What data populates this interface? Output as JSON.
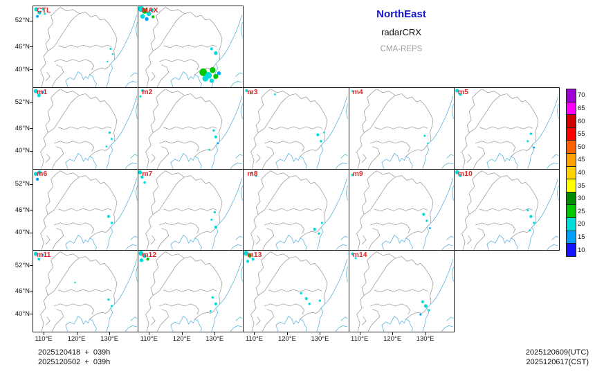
{
  "titles": {
    "region": "NorthEast",
    "product": "radarCRX",
    "model": "CMA-REPS"
  },
  "axes": {
    "y_ticks": [
      "52°N",
      "46°N",
      "40°N"
    ],
    "x_ticks": [
      "110°E",
      "120°E",
      "130°E"
    ]
  },
  "colorbar": {
    "values": [
      70,
      65,
      60,
      55,
      50,
      45,
      40,
      35,
      30,
      25,
      20,
      15,
      10
    ],
    "colors": [
      "#A000D2",
      "#FF00FF",
      "#D00000",
      "#FF0000",
      "#FF6400",
      "#FFA000",
      "#FFD200",
      "#FFFF00",
      "#008C00",
      "#00C800",
      "#00DCDC",
      "#00A0FF",
      "#1414FF"
    ]
  },
  "echo_colors": {
    "c": "#00DCDC",
    "g": "#00C800",
    "b": "#00A0FF",
    "d": "#008C00"
  },
  "panels": [
    {
      "label": "CTL",
      "row": 0,
      "col": 0,
      "echoes": [
        [
          3,
          3,
          2,
          "c"
        ],
        [
          6,
          6,
          1.8,
          "c"
        ],
        [
          9.5,
          2.5,
          1.4,
          "c"
        ],
        [
          4,
          9.5,
          1.3,
          "b"
        ],
        [
          11,
          7,
          1,
          "c"
        ],
        [
          74,
          40,
          1,
          "c"
        ],
        [
          76,
          45,
          0.9,
          "c"
        ],
        [
          71,
          52,
          0.8,
          "c"
        ]
      ]
    },
    {
      "label": "MAX",
      "row": 0,
      "col": 1,
      "echoes": [
        [
          2.5,
          2.5,
          2.8,
          "c"
        ],
        [
          6,
          4.5,
          2.6,
          "g"
        ],
        [
          10,
          7,
          2.2,
          "c"
        ],
        [
          4,
          9.5,
          2.2,
          "c"
        ],
        [
          13,
          3.5,
          1.8,
          "c"
        ],
        [
          8,
          12,
          1.8,
          "b"
        ],
        [
          14,
          10,
          1.4,
          "g"
        ],
        [
          70,
          40,
          1.4,
          "c"
        ],
        [
          74,
          44,
          1.8,
          "c"
        ],
        [
          62,
          62,
          3.6,
          "g"
        ],
        [
          67,
          65,
          3.2,
          "c"
        ],
        [
          71,
          60,
          2.8,
          "g"
        ],
        [
          64,
          68,
          2.8,
          "c"
        ],
        [
          74,
          66,
          2.4,
          "g"
        ],
        [
          70,
          70,
          2,
          "c"
        ],
        [
          77,
          63,
          1.8,
          "b"
        ]
      ]
    },
    {
      "label": "m1",
      "row": 1,
      "col": 0,
      "echoes": [
        [
          2.5,
          3,
          2,
          "c"
        ],
        [
          5.5,
          7,
          1.7,
          "c"
        ],
        [
          9,
          4,
          1.3,
          "b"
        ],
        [
          73,
          42,
          1.1,
          "c"
        ],
        [
          75,
          48,
          1,
          "c"
        ],
        [
          70,
          55,
          0.9,
          "c"
        ]
      ]
    },
    {
      "label": "m2",
      "row": 1,
      "col": 1,
      "echoes": [
        [
          4,
          2.5,
          1.4,
          "c"
        ],
        [
          2,
          8,
          1,
          "c"
        ],
        [
          72,
          40,
          1.1,
          "c"
        ],
        [
          74,
          46,
          1.4,
          "c"
        ],
        [
          76,
          52,
          1,
          "b"
        ],
        [
          68,
          58,
          0.9,
          "c"
        ]
      ]
    },
    {
      "label": "m3",
      "row": 1,
      "col": 2,
      "echoes": [
        [
          3,
          2.5,
          1.4,
          "c"
        ],
        [
          7,
          5,
          1.1,
          "c"
        ],
        [
          30,
          6,
          0.9,
          "c"
        ],
        [
          71,
          44,
          1.4,
          "c"
        ],
        [
          74,
          50,
          1.1,
          "c"
        ],
        [
          77,
          42,
          0.9,
          "c"
        ]
      ]
    },
    {
      "label": "m4",
      "row": 1,
      "col": 3,
      "echoes": [
        [
          3,
          3,
          1,
          "c"
        ],
        [
          72,
          45,
          1,
          "c"
        ],
        [
          75,
          52,
          0.8,
          "c"
        ]
      ]
    },
    {
      "label": "m5",
      "row": 1,
      "col": 4,
      "echoes": [
        [
          2.5,
          2.5,
          1.8,
          "c"
        ],
        [
          5.5,
          6,
          1.4,
          "c"
        ],
        [
          73,
          43,
          1.1,
          "c"
        ],
        [
          70,
          50,
          1,
          "c"
        ],
        [
          76,
          56,
          0.9,
          "b"
        ]
      ]
    },
    {
      "label": "m6",
      "row": 2,
      "col": 0,
      "echoes": [
        [
          2.5,
          4,
          1.9,
          "c"
        ],
        [
          6,
          2.5,
          1.8,
          "c"
        ],
        [
          4,
          9,
          1.4,
          "b"
        ],
        [
          72,
          44,
          1.4,
          "c"
        ],
        [
          75,
          50,
          1.1,
          "c"
        ]
      ]
    },
    {
      "label": "m7",
      "row": 2,
      "col": 1,
      "echoes": [
        [
          1.5,
          2.5,
          1.9,
          "c"
        ],
        [
          3.5,
          7,
          1.5,
          "c"
        ],
        [
          6,
          12,
          1.2,
          "c"
        ],
        [
          73,
          40,
          1.1,
          "c"
        ],
        [
          70,
          47,
          1,
          "c"
        ],
        [
          74,
          54,
          1.4,
          "c"
        ]
      ]
    },
    {
      "label": "m8",
      "row": 2,
      "col": 2,
      "echoes": [
        [
          8,
          3,
          1.2,
          "c"
        ],
        [
          12,
          6,
          1,
          "c"
        ],
        [
          68,
          56,
          1.4,
          "c"
        ],
        [
          72,
          60,
          1.1,
          "c"
        ],
        [
          75,
          50,
          1,
          "c"
        ]
      ]
    },
    {
      "label": "m9",
      "row": 2,
      "col": 3,
      "echoes": [
        [
          3,
          5,
          1.2,
          "c"
        ],
        [
          71,
          42,
          1.4,
          "c"
        ],
        [
          74,
          48,
          1.1,
          "c"
        ],
        [
          77,
          55,
          0.9,
          "b"
        ]
      ]
    },
    {
      "label": "m10",
      "row": 2,
      "col": 4,
      "echoes": [
        [
          2.5,
          2.5,
          1.9,
          "c"
        ],
        [
          5.5,
          5.5,
          1.4,
          "c"
        ],
        [
          70,
          38,
          1.1,
          "c"
        ],
        [
          73,
          44,
          1.4,
          "c"
        ],
        [
          76,
          50,
          1.1,
          "c"
        ],
        [
          72,
          57,
          0.9,
          "c"
        ]
      ]
    },
    {
      "label": "m11",
      "row": 3,
      "col": 0,
      "echoes": [
        [
          2.5,
          3,
          1.9,
          "c"
        ],
        [
          5.5,
          8,
          1.4,
          "c"
        ],
        [
          9,
          4,
          1.1,
          "b"
        ],
        [
          40,
          30,
          0.8,
          "c"
        ],
        [
          72,
          46,
          1.1,
          "c"
        ],
        [
          75,
          52,
          1,
          "c"
        ]
      ]
    },
    {
      "label": "m12",
      "row": 3,
      "col": 1,
      "echoes": [
        [
          2.5,
          2.5,
          2.3,
          "c"
        ],
        [
          6,
          5,
          1.9,
          "c"
        ],
        [
          3,
          9,
          1.8,
          "c"
        ],
        [
          9,
          8,
          1.4,
          "g"
        ],
        [
          71,
          44,
          1.1,
          "c"
        ],
        [
          74,
          50,
          1.4,
          "c"
        ],
        [
          69,
          57,
          1,
          "c"
        ]
      ]
    },
    {
      "label": "m13",
      "row": 3,
      "col": 2,
      "echoes": [
        [
          2.5,
          2.5,
          2.3,
          "c"
        ],
        [
          6,
          4.5,
          1.9,
          "g"
        ],
        [
          9,
          8,
          1.4,
          "c"
        ],
        [
          4,
          10,
          1.4,
          "c"
        ],
        [
          55,
          40,
          1.1,
          "c"
        ],
        [
          60,
          45,
          1.4,
          "c"
        ],
        [
          63,
          50,
          1.1,
          "c"
        ],
        [
          73,
          47,
          1.1,
          "c"
        ]
      ]
    },
    {
      "label": "m14",
      "row": 3,
      "col": 3,
      "echoes": [
        [
          3,
          3,
          1.4,
          "c"
        ],
        [
          6,
          7,
          1,
          "c"
        ],
        [
          70,
          48,
          1.4,
          "c"
        ],
        [
          73,
          52,
          1.7,
          "c"
        ],
        [
          76,
          56,
          1.1,
          "c"
        ],
        [
          68,
          60,
          1,
          "b"
        ]
      ]
    }
  ],
  "footer": {
    "init1": "2025120418  +  039h",
    "init2": "2025120502  +  039h",
    "valid_utc": "2025120609(UTC)",
    "valid_cst": "2025120617(CST)"
  }
}
